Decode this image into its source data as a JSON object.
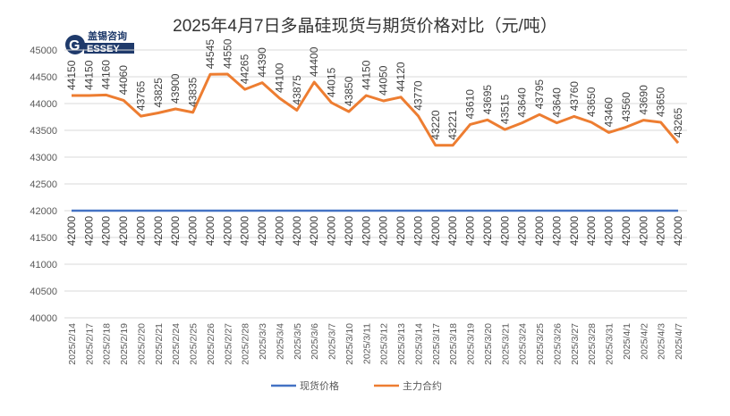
{
  "chart_data": {
    "type": "line",
    "title": "2025年4月7日多晶硅现货与期货价格对比（元/吨）",
    "categories": [
      "2025/2/14",
      "2025/2/17",
      "2025/2/18",
      "2025/2/19",
      "2025/2/20",
      "2025/2/21",
      "2025/2/24",
      "2025/2/25",
      "2025/2/26",
      "2025/2/27",
      "2025/2/28",
      "2025/3/3",
      "2025/3/4",
      "2025/3/5",
      "2025/3/6",
      "2025/3/7",
      "2025/3/10",
      "2025/3/11",
      "2025/3/12",
      "2025/3/13",
      "2025/3/14",
      "2025/3/17",
      "2025/3/18",
      "2025/3/19",
      "2025/3/20",
      "2025/3/21",
      "2025/3/24",
      "2025/3/25",
      "2025/3/26",
      "2025/3/27",
      "2025/3/28",
      "2025/3/31",
      "2025/4/1",
      "2025/4/2",
      "2025/4/3",
      "2025/4/7"
    ],
    "series": [
      {
        "name": "现货价格",
        "color": "#4472C4",
        "values": [
          42000,
          42000,
          42000,
          42000,
          42000,
          42000,
          42000,
          42000,
          42000,
          42000,
          42000,
          42000,
          42000,
          42000,
          42000,
          42000,
          42000,
          42000,
          42000,
          42000,
          42000,
          42000,
          42000,
          42000,
          42000,
          42000,
          42000,
          42000,
          42000,
          42000,
          42000,
          42000,
          42000,
          42000,
          42000,
          42000
        ]
      },
      {
        "name": "主力合约",
        "color": "#ED7D31",
        "values": [
          44150,
          44150,
          44160,
          44060,
          43765,
          43825,
          43900,
          43835,
          44545,
          44550,
          44265,
          44390,
          44100,
          43875,
          44400,
          44015,
          43850,
          44150,
          44050,
          44120,
          43770,
          43220,
          43221,
          43610,
          43695,
          43515,
          43640,
          43795,
          43640,
          43760,
          43650,
          43460,
          43560,
          43690,
          43650,
          43265
        ]
      }
    ],
    "ylim": [
      40000,
      45000
    ],
    "yticks": [
      40000,
      40500,
      41000,
      41500,
      42000,
      42500,
      43000,
      43500,
      44000,
      44500,
      45000
    ],
    "grid": true,
    "legend": "bottom",
    "data_labels": true
  },
  "logo": {
    "text_cn": "盖锡咨询",
    "text_en": "GESSEY"
  }
}
